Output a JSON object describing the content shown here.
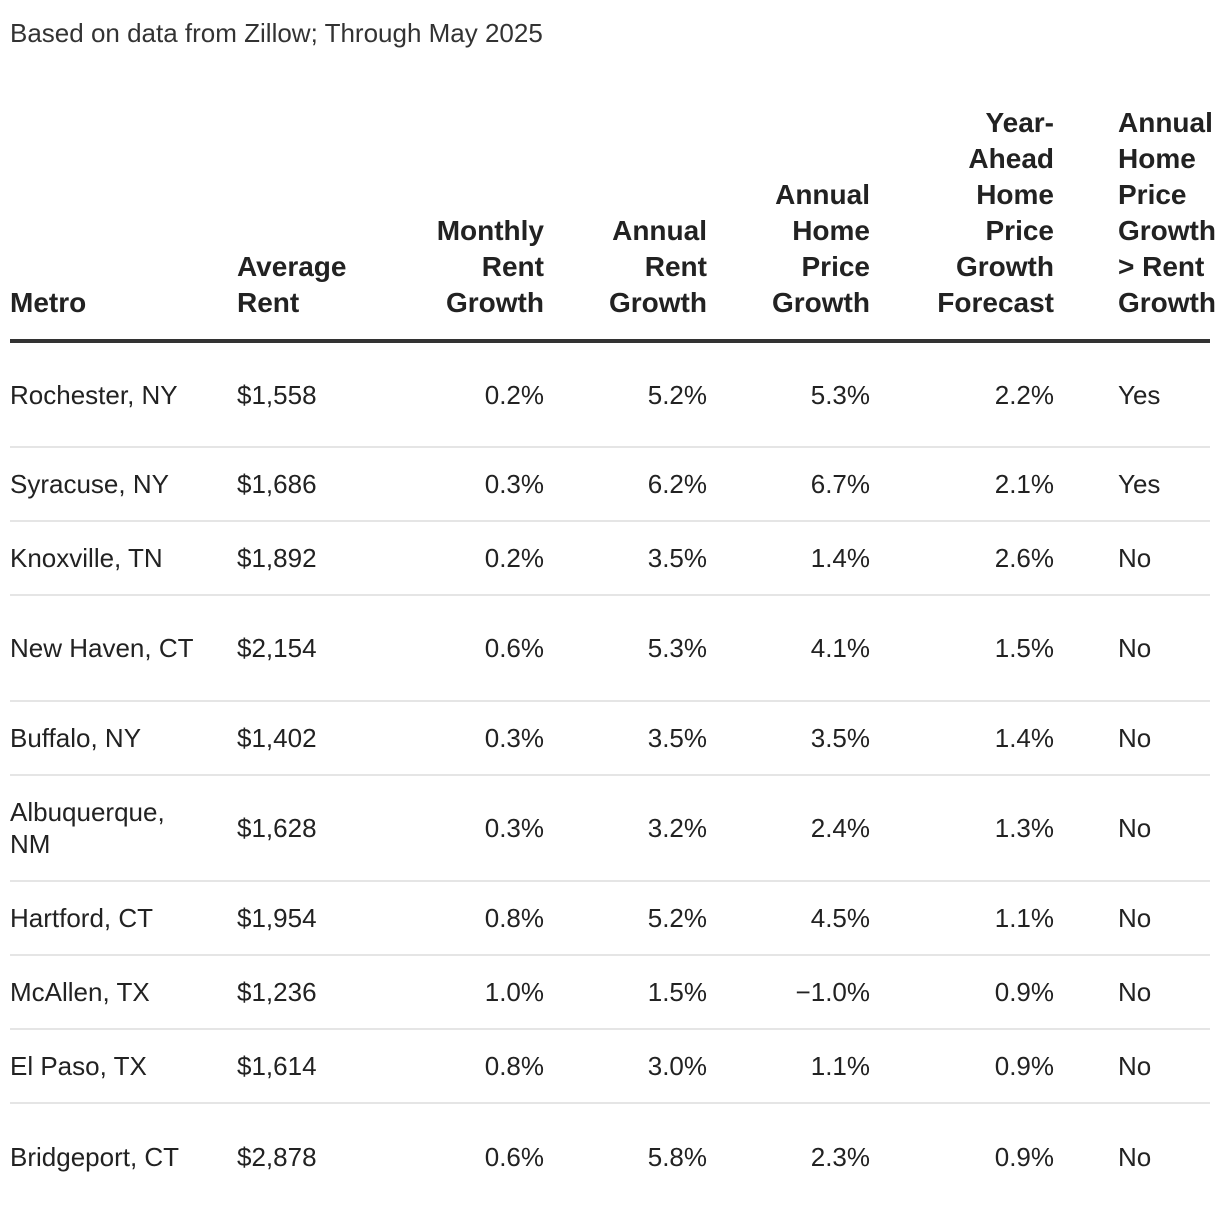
{
  "source_note": "Based on data from Zillow; Through May 2025",
  "table": {
    "headers": [
      "Metro",
      "Average Rent",
      "Monthly Rent Growth",
      "Annual Rent Growth",
      "Annual Home Price Growth",
      "Year-Ahead Home Price Growth Forecast",
      "Annual Home Price Growth > Rent Growth"
    ],
    "rows": [
      [
        "Rochester, NY",
        "$1,558",
        "0.2%",
        "5.2%",
        "5.3%",
        "2.2%",
        "Yes"
      ],
      [
        "Syracuse, NY",
        "$1,686",
        "0.3%",
        "6.2%",
        "6.7%",
        "2.1%",
        "Yes"
      ],
      [
        "Knoxville, TN",
        "$1,892",
        "0.2%",
        "3.5%",
        "1.4%",
        "2.6%",
        "No"
      ],
      [
        "New Haven, CT",
        "$2,154",
        "0.6%",
        "5.3%",
        "4.1%",
        "1.5%",
        "No"
      ],
      [
        "Buffalo, NY",
        "$1,402",
        "0.3%",
        "3.5%",
        "3.5%",
        "1.4%",
        "No"
      ],
      [
        "Albuquerque, NM",
        "$1,628",
        "0.3%",
        "3.2%",
        "2.4%",
        "1.3%",
        "No"
      ],
      [
        "Hartford, CT",
        "$1,954",
        "0.8%",
        "5.2%",
        "4.5%",
        "1.1%",
        "No"
      ],
      [
        "McAllen, TX",
        "$1,236",
        "1.0%",
        "1.5%",
        "−1.0%",
        "0.9%",
        "No"
      ],
      [
        "El Paso, TX",
        "$1,614",
        "0.8%",
        "3.0%",
        "1.1%",
        "0.9%",
        "No"
      ],
      [
        "Bridgeport, CT",
        "$2,878",
        "0.6%",
        "5.8%",
        "2.3%",
        "0.9%",
        "No"
      ]
    ]
  }
}
